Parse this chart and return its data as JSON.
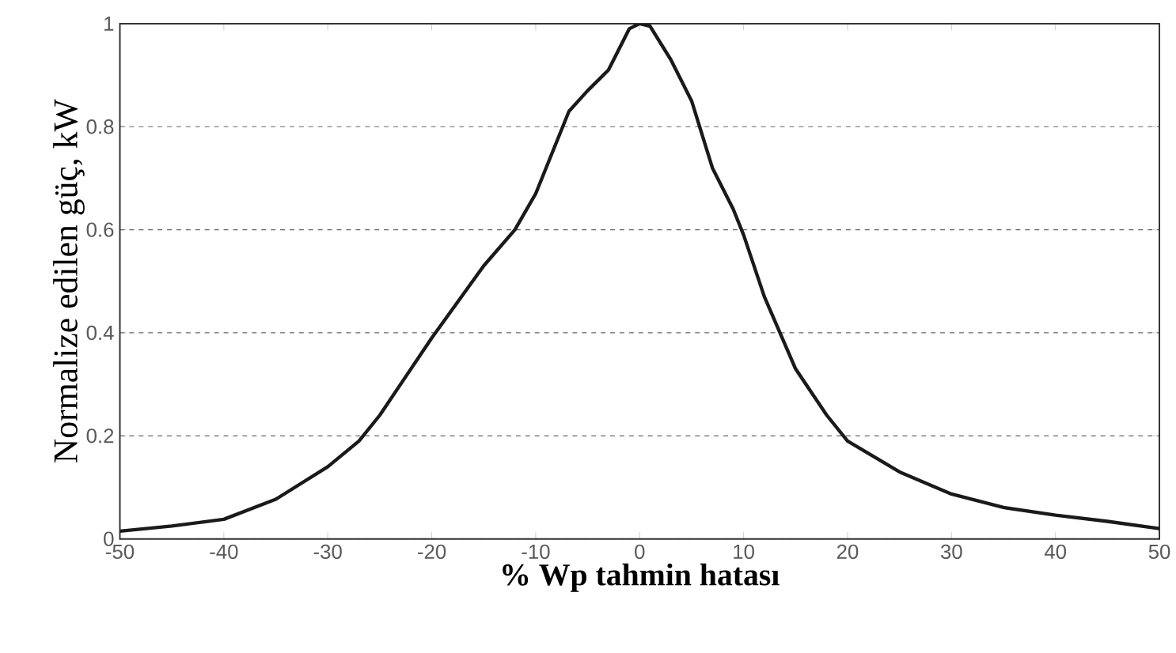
{
  "chart_data": {
    "type": "line",
    "xlabel": "% Wp tahmin hatası",
    "ylabel": "Normalize edilen güç, kW",
    "xlim": [
      -50,
      50
    ],
    "ylim": [
      0,
      1
    ],
    "xticks": [
      -50,
      -40,
      -30,
      -20,
      -10,
      0,
      10,
      20,
      30,
      40,
      50
    ],
    "yticks": [
      0,
      0.2,
      0.4,
      0.6,
      0.8,
      1
    ],
    "grid": "y",
    "line_style": "solid",
    "series": [
      {
        "color": "#1a1a1a",
        "x": [
          -50,
          -45,
          -40,
          -35,
          -30,
          -27,
          -25,
          -20,
          -15,
          -12,
          -10,
          -6.8,
          -5,
          -3,
          -1,
          0,
          1,
          3,
          5,
          7,
          9,
          10,
          12,
          15,
          18,
          20,
          25,
          30,
          35,
          40,
          45,
          50
        ],
        "values": [
          0.015,
          0.025,
          0.038,
          0.077,
          0.14,
          0.19,
          0.24,
          0.39,
          0.53,
          0.6,
          0.67,
          0.83,
          0.87,
          0.91,
          0.99,
          1.0,
          0.995,
          0.93,
          0.85,
          0.72,
          0.64,
          0.59,
          0.47,
          0.33,
          0.24,
          0.19,
          0.13,
          0.087,
          0.061,
          0.046,
          0.034,
          0.02
        ]
      }
    ]
  }
}
